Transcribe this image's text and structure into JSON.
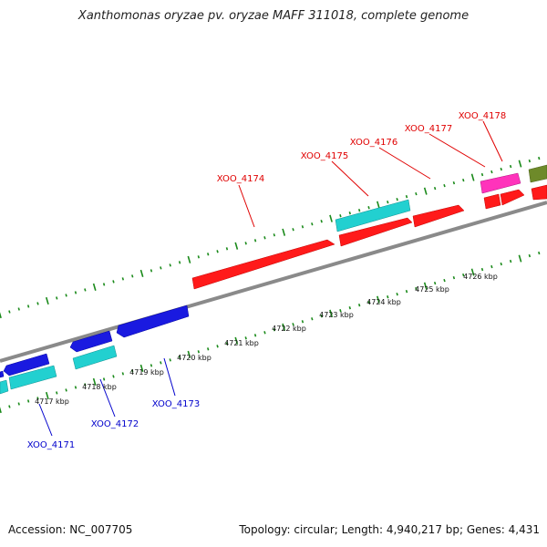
{
  "title": "Xanthomonas oryzae pv. oryzae MAFF 311018, complete genome",
  "footer": {
    "accession": "Accession: NC_007705",
    "topology": "Topology: circular; Length: 4,940,217 bp; Genes: 4,431"
  },
  "scale": {
    "labels": [
      "4717 kbp",
      "4718 kbp",
      "4719 kbp",
      "4720 kbp",
      "4721 kbp",
      "4722 kbp",
      "4723 kbp",
      "4724 kbp",
      "4725 kbp",
      "4726 kbp"
    ]
  },
  "genes": {
    "forward": [
      "XOO_4174",
      "XOO_4175",
      "XOO_4176",
      "XOO_4177",
      "XOO_4178"
    ],
    "reverse": [
      "XOO_4171",
      "XOO_4172",
      "XOO_4173"
    ]
  },
  "colors": {
    "forward_label": "#e00000",
    "reverse_label": "#0000cc",
    "backbone": "#8a8a8a",
    "ticks": "#1a8a1a",
    "red": "#ff1a1a",
    "cyan": "#22d0d0",
    "blue": "#1a1ae0",
    "magenta": "#ff33bb",
    "olive": "#6e8a2a"
  }
}
